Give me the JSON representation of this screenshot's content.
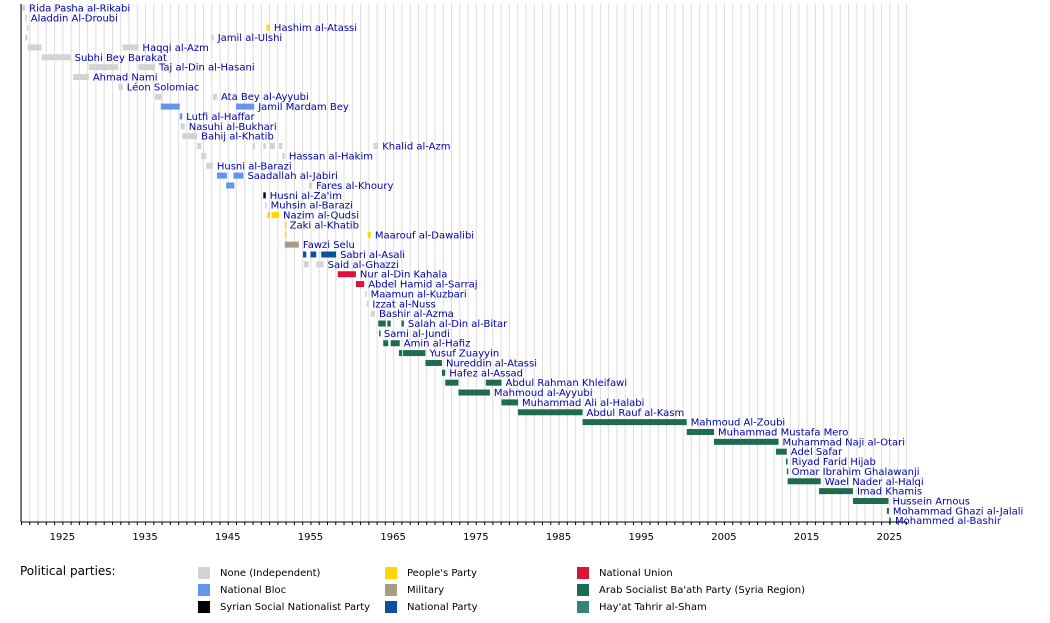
{
  "chart_data": {
    "type": "timeline",
    "x_axis": {
      "range": [
        1920,
        2027
      ],
      "tick_labels": [
        "1925",
        "1935",
        "1945",
        "1955",
        "1965",
        "1975",
        "1985",
        "1995",
        "2005",
        "2015",
        "2025"
      ],
      "grid": "vertical lines every year"
    },
    "legend": {
      "title": "Political parties:",
      "placement": "bottom",
      "entries": [
        {
          "key": "independent",
          "label": "None (Independent)",
          "color": "#d3d3d3"
        },
        {
          "key": "bloc",
          "label": "National Bloc",
          "color": "#6495ed"
        },
        {
          "key": "ssnp",
          "label": "Syrian Social Nationalist Party",
          "color": "#000000"
        },
        {
          "key": "peoples",
          "label": "People's Party",
          "color": "#ffd700"
        },
        {
          "key": "military",
          "label": "Military",
          "color": "#ab9a84"
        },
        {
          "key": "national",
          "label": "National Party",
          "color": "#0c50a4"
        },
        {
          "key": "union",
          "label": "National Union",
          "color": "#dc143c"
        },
        {
          "key": "baath",
          "label": "Arab Socialist Ba'ath Party (Syria Region)",
          "color": "#1e6b50"
        },
        {
          "key": "hts",
          "label": "Hay'at Tahrir al-Sham",
          "color": "#358577"
        }
      ]
    },
    "rows": [
      {
        "name": "Rida Pasha al-Rikabi",
        "terms": [
          {
            "start": 1920.1,
            "end": 1920.5,
            "party": "independent"
          }
        ]
      },
      {
        "name": "Aladdin Al-Droubi",
        "terms": [
          {
            "start": 1920.5,
            "end": 1920.7,
            "party": "independent"
          }
        ]
      },
      {
        "name": "Hashim al-Atassi",
        "terms": [
          {
            "start": 1920.7,
            "end": 1920.9,
            "party": "independent"
          },
          {
            "start": 1949.7,
            "end": 1950.1,
            "party": "peoples"
          }
        ]
      },
      {
        "name": "Jamil al-Ulshi",
        "terms": [
          {
            "start": 1920.5,
            "end": 1920.8,
            "party": "independent"
          },
          {
            "start": 1943.0,
            "end": 1943.3,
            "party": "independent"
          }
        ]
      },
      {
        "name": "Haqqi al-Azm",
        "terms": [
          {
            "start": 1920.8,
            "end": 1922.5,
            "party": "independent"
          },
          {
            "start": 1932.3,
            "end": 1934.2,
            "party": "independent"
          }
        ]
      },
      {
        "name": "Subhi Bey Barakat",
        "terms": [
          {
            "start": 1922.5,
            "end": 1926.0,
            "party": "independent"
          }
        ]
      },
      {
        "name": "Taj al-Din al-Hasani",
        "terms": [
          {
            "start": 1928.2,
            "end": 1931.8,
            "party": "independent"
          },
          {
            "start": 1934.2,
            "end": 1936.2,
            "party": "independent"
          }
        ]
      },
      {
        "name": "Ahmad Nami",
        "terms": [
          {
            "start": 1926.3,
            "end": 1928.2,
            "party": "independent"
          }
        ]
      },
      {
        "name": "Léon Solomiac",
        "terms": [
          {
            "start": 1931.8,
            "end": 1932.3,
            "party": "independent"
          }
        ]
      },
      {
        "name": "Ata Bey al-Ayyubi",
        "terms": [
          {
            "start": 1936.2,
            "end": 1937.0,
            "party": "independent"
          },
          {
            "start": 1943.2,
            "end": 1943.7,
            "party": "independent"
          }
        ]
      },
      {
        "name": "Jamil Mardam Bey",
        "terms": [
          {
            "start": 1936.9,
            "end": 1939.2,
            "party": "bloc"
          },
          {
            "start": 1946.0,
            "end": 1948.2,
            "party": "bloc"
          }
        ]
      },
      {
        "name": "Lutfi al-Haffar",
        "terms": [
          {
            "start": 1939.2,
            "end": 1939.5,
            "party": "bloc"
          }
        ]
      },
      {
        "name": "Nasuhi al-Bukhari",
        "terms": [
          {
            "start": 1939.3,
            "end": 1939.8,
            "party": "independent"
          }
        ]
      },
      {
        "name": "Bahij al-Khatib",
        "terms": [
          {
            "start": 1939.5,
            "end": 1941.3,
            "party": "independent"
          }
        ]
      },
      {
        "name": "Khalid al-Azm",
        "terms": [
          {
            "start": 1941.3,
            "end": 1941.8,
            "party": "independent"
          },
          {
            "start": 1948.0,
            "end": 1948.3,
            "party": "independent"
          },
          {
            "start": 1949.3,
            "end": 1949.6,
            "party": "independent"
          },
          {
            "start": 1950.1,
            "end": 1950.7,
            "party": "independent"
          },
          {
            "start": 1951.2,
            "end": 1951.6,
            "party": "independent"
          },
          {
            "start": 1962.6,
            "end": 1963.2,
            "party": "independent"
          }
        ]
      },
      {
        "name": "Hassan al-Hakim",
        "terms": [
          {
            "start": 1941.8,
            "end": 1942.4,
            "party": "independent"
          },
          {
            "start": 1951.6,
            "end": 1951.9,
            "party": "independent"
          }
        ]
      },
      {
        "name": "Husni al-Barazi",
        "terms": [
          {
            "start": 1942.4,
            "end": 1943.2,
            "party": "independent"
          }
        ]
      },
      {
        "name": "Saadallah al-Jabiri",
        "terms": [
          {
            "start": 1943.7,
            "end": 1944.9,
            "party": "bloc"
          },
          {
            "start": 1945.7,
            "end": 1946.9,
            "party": "bloc"
          }
        ]
      },
      {
        "name": "Fares al-Khoury",
        "terms": [
          {
            "start": 1944.8,
            "end": 1945.8,
            "party": "bloc"
          },
          {
            "start": 1954.8,
            "end": 1955.2,
            "party": "independent"
          }
        ]
      },
      {
        "name": "Husni al-Za'im",
        "terms": [
          {
            "start": 1949.3,
            "end": 1949.6,
            "party": "ssnp"
          }
        ]
      },
      {
        "name": "Muhsin al-Barazi",
        "terms": [
          {
            "start": 1949.5,
            "end": 1949.7,
            "party": "independent"
          }
        ]
      },
      {
        "name": "Nazim al-Qudsi",
        "terms": [
          {
            "start": 1949.8,
            "end": 1950.1,
            "party": "peoples"
          },
          {
            "start": 1950.3,
            "end": 1951.2,
            "party": "peoples"
          }
        ]
      },
      {
        "name": "Zaki al-Khatib",
        "terms": [
          {
            "start": 1951.9,
            "end": 1952.0,
            "party": "peoples"
          }
        ]
      },
      {
        "name": "Maarouf al-Dawalibi",
        "terms": [
          {
            "start": 1951.9,
            "end": 1952.0,
            "party": "peoples"
          },
          {
            "start": 1961.9,
            "end": 1962.3,
            "party": "peoples"
          }
        ]
      },
      {
        "name": "Fawzi Selu",
        "terms": [
          {
            "start": 1951.9,
            "end": 1953.6,
            "party": "military"
          }
        ]
      },
      {
        "name": "Sabri al-Asali",
        "terms": [
          {
            "start": 1954.1,
            "end": 1954.5,
            "party": "national"
          },
          {
            "start": 1955.0,
            "end": 1955.7,
            "party": "national"
          },
          {
            "start": 1956.3,
            "end": 1958.1,
            "party": "national"
          }
        ]
      },
      {
        "name": "Said al-Ghazzi",
        "terms": [
          {
            "start": 1954.2,
            "end": 1954.8,
            "party": "independent"
          },
          {
            "start": 1955.7,
            "end": 1956.6,
            "party": "independent"
          }
        ]
      },
      {
        "name": "Nur al-Din Kahala",
        "terms": [
          {
            "start": 1958.3,
            "end": 1960.5,
            "party": "union"
          }
        ]
      },
      {
        "name": "Abdel Hamid al-Sarraj",
        "terms": [
          {
            "start": 1960.5,
            "end": 1961.5,
            "party": "union"
          }
        ]
      },
      {
        "name": "Maamun al-Kuzbari",
        "terms": [
          {
            "start": 1961.6,
            "end": 1961.8,
            "party": "independent"
          }
        ]
      },
      {
        "name": "Izzat al-Nuss",
        "terms": [
          {
            "start": 1961.8,
            "end": 1962.0,
            "party": "independent"
          }
        ]
      },
      {
        "name": "Bashir al-Azma",
        "terms": [
          {
            "start": 1962.3,
            "end": 1962.8,
            "party": "independent"
          }
        ]
      },
      {
        "name": "Salah al-Din al-Bitar",
        "terms": [
          {
            "start": 1963.2,
            "end": 1964.1,
            "party": "baath"
          },
          {
            "start": 1964.3,
            "end": 1964.7,
            "party": "baath"
          },
          {
            "start": 1966.0,
            "end": 1966.3,
            "party": "baath"
          }
        ]
      },
      {
        "name": "Sami al-Jundi",
        "terms": [
          {
            "start": 1963.3,
            "end": 1963.4,
            "party": "baath"
          }
        ]
      },
      {
        "name": "Amin al-Hafiz",
        "terms": [
          {
            "start": 1963.8,
            "end": 1964.4,
            "party": "baath"
          },
          {
            "start": 1964.7,
            "end": 1965.8,
            "party": "baath"
          }
        ]
      },
      {
        "name": "Yusuf Zuayyin",
        "terms": [
          {
            "start": 1965.7,
            "end": 1966.1,
            "party": "baath"
          },
          {
            "start": 1966.2,
            "end": 1968.9,
            "party": "baath"
          }
        ]
      },
      {
        "name": "Nureddin al-Atassi",
        "terms": [
          {
            "start": 1968.9,
            "end": 1970.9,
            "party": "baath"
          }
        ]
      },
      {
        "name": "Hafez al-Assad",
        "terms": [
          {
            "start": 1970.9,
            "end": 1971.3,
            "party": "baath"
          }
        ]
      },
      {
        "name": "Abdul Rahman Khleifawi",
        "terms": [
          {
            "start": 1971.3,
            "end": 1972.9,
            "party": "baath"
          },
          {
            "start": 1976.2,
            "end": 1978.1,
            "party": "baath"
          }
        ]
      },
      {
        "name": "Mahmoud al-Ayyubi",
        "terms": [
          {
            "start": 1972.9,
            "end": 1976.7,
            "party": "baath"
          }
        ]
      },
      {
        "name": "Muhammad Ali al-Halabi",
        "terms": [
          {
            "start": 1978.1,
            "end": 1980.1,
            "party": "baath"
          }
        ]
      },
      {
        "name": "Abdul Rauf al-Kasm",
        "terms": [
          {
            "start": 1980.1,
            "end": 1987.9,
            "party": "baath"
          }
        ]
      },
      {
        "name": "Mahmoud Al-Zoubi",
        "terms": [
          {
            "start": 1987.9,
            "end": 2000.5,
            "party": "baath"
          }
        ]
      },
      {
        "name": "Muhammad Mustafa Mero",
        "terms": [
          {
            "start": 2000.5,
            "end": 2003.8,
            "party": "baath"
          }
        ]
      },
      {
        "name": "Muhammad Naji al-Otari",
        "terms": [
          {
            "start": 2003.8,
            "end": 2011.6,
            "party": "baath"
          }
        ]
      },
      {
        "name": "Adel Safar",
        "terms": [
          {
            "start": 2011.3,
            "end": 2012.6,
            "party": "baath"
          }
        ]
      },
      {
        "name": "Riyad Farid Hijab",
        "terms": [
          {
            "start": 2012.5,
            "end": 2012.7,
            "party": "baath"
          }
        ]
      },
      {
        "name": "Omar Ibrahim Ghalawanji",
        "terms": [
          {
            "start": 2012.6,
            "end": 2012.7,
            "party": "baath"
          }
        ]
      },
      {
        "name": "Wael Nader al-Halqi",
        "terms": [
          {
            "start": 2012.7,
            "end": 2016.7,
            "party": "baath"
          }
        ]
      },
      {
        "name": "Imad Khamis",
        "terms": [
          {
            "start": 2016.5,
            "end": 2020.6,
            "party": "baath"
          }
        ]
      },
      {
        "name": "Hussein Arnous",
        "terms": [
          {
            "start": 2020.6,
            "end": 2024.9,
            "party": "baath"
          }
        ]
      },
      {
        "name": "Mohammad Ghazi al-Jalali",
        "terms": [
          {
            "start": 2024.7,
            "end": 2024.95,
            "party": "baath"
          }
        ]
      },
      {
        "name": "Mohammed al-Bashir",
        "terms": [
          {
            "start": 2024.95,
            "end": 2025.2,
            "party": "hts"
          }
        ]
      }
    ]
  }
}
